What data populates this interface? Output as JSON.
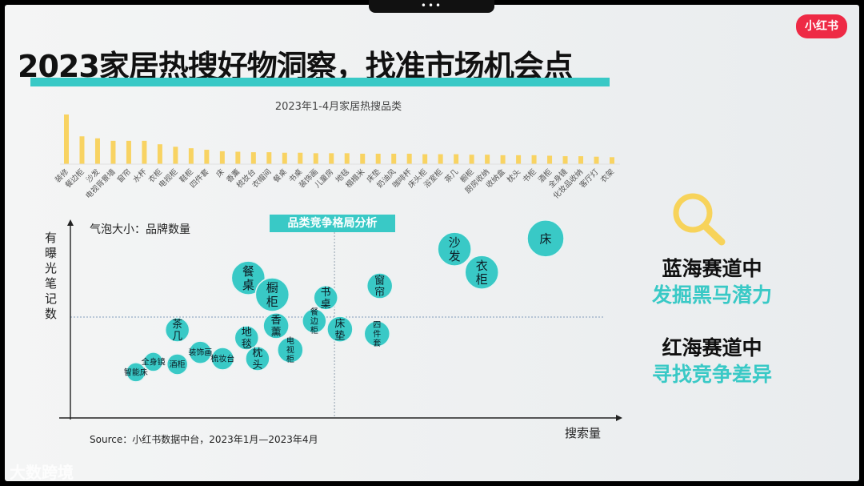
{
  "window": {
    "menu_dots": "•••"
  },
  "logo": "小红书",
  "title": "2023家居热搜好物洞察，找准市场机会点",
  "right_panel": {
    "blue_ocean_heading": "蓝海赛道中",
    "blue_ocean_text": "发掘黑马潜力",
    "red_ocean_heading": "红海赛道中",
    "red_ocean_text": "寻找竞争差异",
    "icon": "magnifier-icon"
  },
  "source": "Source：小红书数据中台，2023年1月—2023年4月",
  "watermark": "大数跨境",
  "colors": {
    "accent": "#39c9c6",
    "bar": "#f8d362",
    "logo": "#ee2a45",
    "magnifier": "#f7d35a"
  },
  "chart_data": [
    {
      "type": "bar",
      "title": "2023年1-4月家居热搜品类",
      "categories": [
        "装修",
        "餐边柜",
        "沙发",
        "电视背景墙",
        "窗帘",
        "水杯",
        "衣柜",
        "电视柜",
        "鞋柜",
        "四件套",
        "床",
        "香薰",
        "梳妆台",
        "衣帽间",
        "餐桌",
        "书桌",
        "装饰画",
        "儿童房",
        "地毯",
        "榻榻米",
        "床垫",
        "奶油风",
        "咖啡杯",
        "床头柜",
        "浴室柜",
        "茶几",
        "橱柜",
        "厨房收纳",
        "收纳盒",
        "枕头",
        "书柜",
        "酒柜",
        "全身镜",
        "化妆品收纳",
        "客厅灯",
        "衣架"
      ],
      "values": [
        100,
        56,
        52,
        47,
        47,
        47,
        40,
        35,
        32,
        29,
        26,
        25,
        24,
        24,
        23,
        23,
        22,
        22,
        22,
        21,
        21,
        21,
        21,
        20,
        20,
        20,
        19,
        19,
        18,
        18,
        18,
        17,
        16,
        16,
        15,
        14
      ],
      "ylim": [
        0,
        100
      ],
      "grid": false
    },
    {
      "type": "scatter",
      "title": "品类竞争格局分析",
      "legend": "气泡大小：品牌数量",
      "xlabel": "搜索量",
      "ylabel": "有曝光笔记数",
      "xlim": [
        0,
        100
      ],
      "ylim": [
        0,
        100
      ],
      "divider": {
        "x": 48.4,
        "y": 54.3
      },
      "points": [
        {
          "label": "智能床",
          "x": 12.0,
          "y": 24.6,
          "size": 12
        },
        {
          "label": "全身镜",
          "x": 15.2,
          "y": 30.2,
          "size": 12
        },
        {
          "label": "酒柜",
          "x": 19.6,
          "y": 28.9,
          "size": 13
        },
        {
          "label": "装饰画",
          "x": 23.8,
          "y": 35.3,
          "size": 14
        },
        {
          "label": "梳妆台",
          "x": 27.9,
          "y": 31.9,
          "size": 14
        },
        {
          "label": "茶几",
          "x": 19.6,
          "y": 47.4,
          "size": 15
        },
        {
          "label": "地毯",
          "x": 32.3,
          "y": 43.1,
          "size": 15
        },
        {
          "label": "枕头",
          "x": 34.3,
          "y": 31.9,
          "size": 15
        },
        {
          "label": "餐桌",
          "x": 32.6,
          "y": 75.4,
          "size": 21
        },
        {
          "label": "橱柜",
          "x": 37.0,
          "y": 66.4,
          "size": 21
        },
        {
          "label": "香薰",
          "x": 37.7,
          "y": 49.6,
          "size": 16
        },
        {
          "label": "电视柜",
          "x": 40.3,
          "y": 36.6,
          "size": 16
        },
        {
          "label": "书桌",
          "x": 46.8,
          "y": 64.7,
          "size": 15
        },
        {
          "label": "餐边柜",
          "x": 44.7,
          "y": 52.2,
          "size": 15
        },
        {
          "label": "床垫",
          "x": 49.4,
          "y": 47.8,
          "size": 16
        },
        {
          "label": "窗帘",
          "x": 56.7,
          "y": 71.1,
          "size": 16
        },
        {
          "label": "四件套",
          "x": 56.2,
          "y": 45.3,
          "size": 16
        },
        {
          "label": "沙发",
          "x": 70.4,
          "y": 90.9,
          "size": 21
        },
        {
          "label": "衣柜",
          "x": 75.4,
          "y": 78.4,
          "size": 21
        },
        {
          "label": "床",
          "x": 87.1,
          "y": 96.6,
          "size": 23
        }
      ]
    }
  ]
}
